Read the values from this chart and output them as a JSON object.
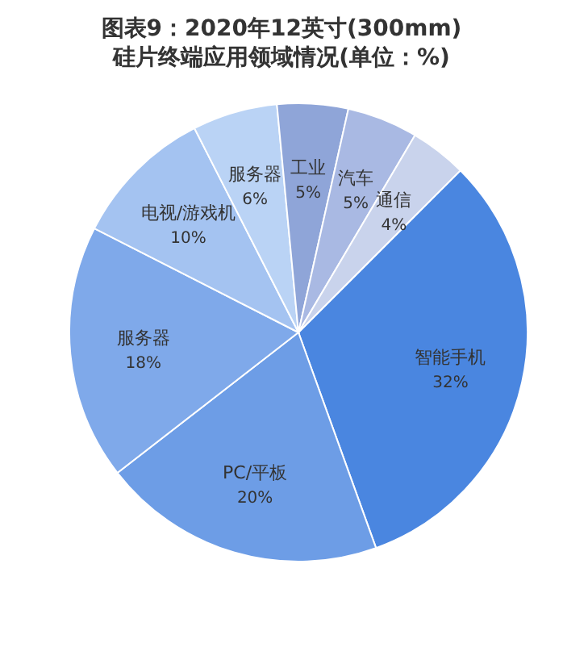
{
  "chart_data": {
    "type": "pie",
    "title": "图表9：2020年12英寸(300mm)硅片终端应用领域情况(单位：%)",
    "categories": [
      "智能手机",
      "PC/平板",
      "服务器",
      "电视/游戏机",
      "服务器",
      "工业",
      "汽车",
      "通信"
    ],
    "values": [
      32,
      20,
      18,
      10,
      6,
      5,
      5,
      4
    ],
    "colors": [
      "#4a86e0",
      "#6d9de6",
      "#7fa9ea",
      "#a4c3f1",
      "#bad3f5",
      "#8fa5d8",
      "#a9b9e3",
      "#c9d3ec"
    ],
    "value_labels": [
      "32%",
      "20%",
      "18%",
      "10%",
      "6%",
      "5%",
      "5%",
      "4%"
    ]
  }
}
